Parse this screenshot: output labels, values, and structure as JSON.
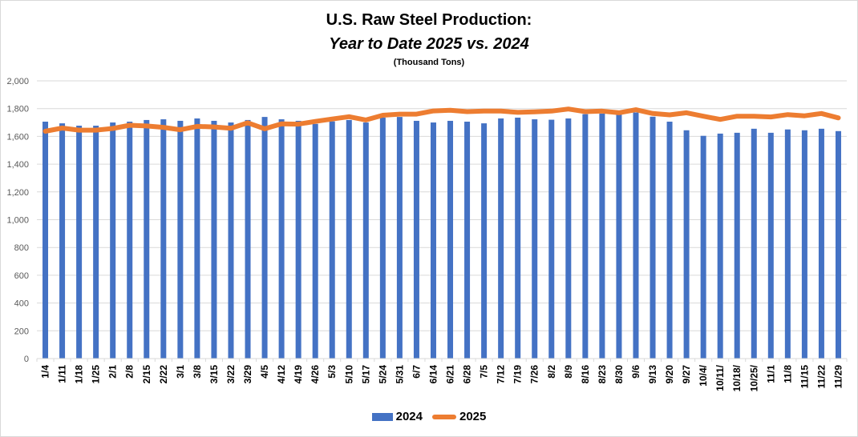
{
  "chart_data": {
    "type": "bar+line",
    "title": "U.S. Raw Steel Production:",
    "subtitle_italic": "Year to Date 2025 vs. 2024",
    "units": "(Thousand Tons)",
    "xlabel": "",
    "ylabel": "",
    "ylim": [
      0,
      2000
    ],
    "yticks": [
      0,
      200,
      400,
      600,
      800,
      1000,
      1200,
      1400,
      1600,
      1800,
      2000
    ],
    "ytick_labels": [
      "0",
      "200",
      "400",
      "600",
      "800",
      "1,000",
      "1,200",
      "1,400",
      "1,600",
      "1,800",
      "2,000"
    ],
    "grid": true,
    "legend_position": "bottom",
    "categories": [
      "1/4",
      "1/11",
      "1/18",
      "1/25",
      "2/1",
      "2/8",
      "2/15",
      "2/22",
      "3/1",
      "3/8",
      "3/15",
      "3/22",
      "3/29",
      "4/5",
      "4/12",
      "4/19",
      "4/26",
      "5/3",
      "5/10",
      "5/17",
      "5/24",
      "5/31",
      "6/7",
      "6/14",
      "6/21",
      "6/28",
      "7/5",
      "7/12",
      "7/19",
      "7/26",
      "8/2",
      "8/9",
      "8/16",
      "8/23",
      "8/30",
      "9/6",
      "9/13",
      "9/20",
      "9/27",
      "10/4/",
      "10/11/",
      "10/18/",
      "10/25/",
      "11/1",
      "11/8",
      "11/15",
      "11/22",
      "11/29"
    ],
    "series": [
      {
        "name": "2024",
        "type": "bar",
        "color": "#4472c4",
        "values": [
          1706,
          1694,
          1677,
          1677,
          1700,
          1706,
          1718,
          1723,
          1712,
          1729,
          1712,
          1700,
          1718,
          1740,
          1723,
          1712,
          1690,
          1708,
          1718,
          1700,
          1735,
          1740,
          1712,
          1700,
          1712,
          1706,
          1694,
          1729,
          1735,
          1723,
          1720,
          1729,
          1760,
          1764,
          1758,
          1772,
          1742,
          1706,
          1644,
          1604,
          1620,
          1626,
          1655,
          1626,
          1650,
          1644,
          1655,
          1638
        ]
      },
      {
        "name": "2025",
        "type": "line",
        "color": "#ed7d31",
        "values": [
          1637,
          1660,
          1645,
          1645,
          1657,
          1680,
          1675,
          1665,
          1648,
          1672,
          1668,
          1658,
          1698,
          1655,
          1690,
          1688,
          1708,
          1725,
          1742,
          1718,
          1752,
          1760,
          1760,
          1783,
          1788,
          1778,
          1782,
          1782,
          1773,
          1777,
          1782,
          1797,
          1778,
          1782,
          1770,
          1792,
          1765,
          1755,
          1770,
          1745,
          1722,
          1745,
          1745,
          1740,
          1757,
          1748,
          1765,
          1733
        ]
      }
    ]
  },
  "legend": {
    "items": [
      {
        "label": "2024"
      },
      {
        "label": "2025"
      }
    ]
  }
}
